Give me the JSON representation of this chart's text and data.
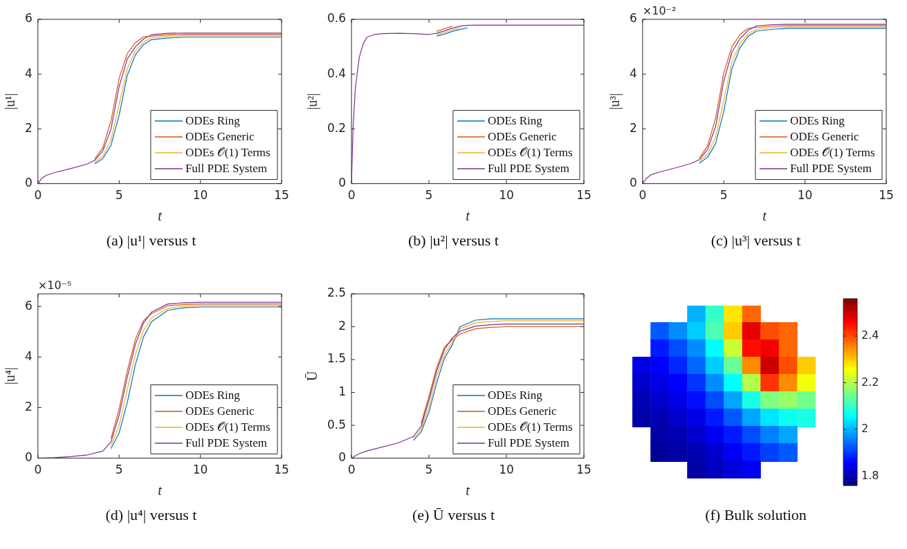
{
  "chart_data": [
    {
      "type": "line",
      "title": "(a) |u¹| versus t",
      "xlabel": "t",
      "ylabel": "|u¹|",
      "legend": "bottom right",
      "xlim": [
        0,
        15
      ],
      "xticks": [
        0,
        5,
        10,
        15
      ],
      "ylim": [
        0,
        6
      ],
      "yticks": [
        0,
        2,
        4,
        6
      ],
      "x": [
        0,
        0.25,
        0.5,
        1,
        2,
        3,
        3.5,
        4,
        4.5,
        5,
        5.5,
        6,
        6.5,
        7,
        8,
        9,
        10,
        12,
        15
      ],
      "series": [
        {
          "name": "ODEs Ring",
          "color": "#0072bd",
          "x": [
            3.5,
            4,
            4.5,
            5,
            5.5,
            6,
            6.5,
            7,
            8,
            9,
            10,
            12,
            15
          ],
          "values": [
            0.72,
            0.92,
            1.4,
            2.5,
            3.95,
            4.7,
            5.08,
            5.26,
            5.32,
            5.35,
            5.35,
            5.35,
            5.35
          ]
        },
        {
          "name": "ODEs Generic",
          "color": "#d95319",
          "x": [
            3.5,
            4,
            4.5,
            5,
            5.5,
            6,
            6.5,
            7,
            8,
            9,
            10,
            12,
            15
          ],
          "values": [
            0.9,
            1.32,
            2.3,
            3.85,
            4.75,
            5.15,
            5.36,
            5.39,
            5.44,
            5.45,
            5.45,
            5.45,
            5.45
          ]
        },
        {
          "name": "ODEs 𝒪(1) Terms",
          "color": "#edb120",
          "x": [
            3.5,
            4,
            4.5,
            5,
            5.5,
            6,
            6.5,
            7,
            8,
            9,
            10,
            12,
            15
          ],
          "values": [
            0.78,
            1.02,
            1.6,
            2.9,
            4.2,
            4.85,
            5.17,
            5.33,
            5.39,
            5.4,
            5.4,
            5.4,
            5.4
          ]
        },
        {
          "name": "Full PDE System",
          "color": "#7e2f8e",
          "values": [
            0,
            0.2,
            0.3,
            0.4,
            0.55,
            0.71,
            0.85,
            1.2,
            2.0,
            3.55,
            4.55,
            5.0,
            5.28,
            5.44,
            5.49,
            5.5,
            5.5,
            5.5,
            5.5
          ]
        }
      ]
    },
    {
      "type": "line",
      "title": "(b) |u²| versus t",
      "xlabel": "t",
      "ylabel": "|u²|",
      "legend": "bottom right",
      "xlim": [
        0,
        15
      ],
      "xticks": [
        0,
        5,
        10,
        15
      ],
      "ylim": [
        0,
        0.6
      ],
      "yticks": [
        0,
        0.2,
        0.4,
        0.6
      ],
      "x": [
        0,
        0.1,
        0.25,
        0.5,
        0.75,
        1,
        1.5,
        2,
        3,
        4,
        5,
        5.5,
        6,
        6.5,
        7,
        7.5,
        8,
        10,
        15
      ],
      "series": [
        {
          "name": "ODEs Ring",
          "color": "#0072bd",
          "x": [
            5.5,
            6,
            6.5,
            7,
            7.5
          ],
          "values": [
            0.539,
            0.546,
            0.556,
            0.563,
            0.569
          ]
        },
        {
          "name": "ODEs Generic",
          "color": "#d95319",
          "x": [
            5.5,
            6,
            6.5
          ],
          "values": [
            0.556,
            0.566,
            0.575
          ]
        },
        {
          "name": "ODEs 𝒪(1) Terms",
          "color": "#edb120",
          "x": [
            5.5,
            6,
            6.5,
            7
          ],
          "values": [
            0.544,
            0.552,
            0.562,
            0.569
          ]
        },
        {
          "name": "Full PDE System",
          "color": "#7e2f8e",
          "values": [
            0,
            0.2,
            0.35,
            0.46,
            0.51,
            0.535,
            0.545,
            0.548,
            0.549,
            0.548,
            0.545,
            0.549,
            0.558,
            0.568,
            0.575,
            0.578,
            0.579,
            0.579,
            0.579
          ]
        }
      ]
    },
    {
      "type": "line",
      "title": "(c) |u³| versus t",
      "xlabel": "t",
      "ylabel": "|u³|",
      "annotations": [
        "×10⁻²"
      ],
      "legend": "bottom right",
      "xlim": [
        0,
        15
      ],
      "xticks": [
        0,
        5,
        10,
        15
      ],
      "ylim": [
        0,
        6
      ],
      "yticks": [
        0,
        2,
        4,
        6
      ],
      "x": [
        0,
        0.25,
        0.5,
        1,
        2,
        3,
        3.5,
        4,
        4.5,
        5,
        5.5,
        6,
        6.5,
        7,
        8,
        9,
        10,
        12,
        15
      ],
      "series": [
        {
          "name": "ODEs Ring",
          "color": "#0072bd",
          "x": [
            3.5,
            4,
            4.5,
            5,
            5.5,
            6,
            6.5,
            7,
            8,
            9,
            10,
            12,
            15
          ],
          "values": [
            0.75,
            0.96,
            1.47,
            2.65,
            4.2,
            4.97,
            5.38,
            5.57,
            5.64,
            5.67,
            5.67,
            5.67,
            5.67
          ]
        },
        {
          "name": "ODEs Generic",
          "color": "#d95319",
          "x": [
            3.5,
            4,
            4.5,
            5,
            5.5,
            6,
            6.5,
            7,
            8,
            9,
            10,
            12,
            15
          ],
          "values": [
            0.94,
            1.38,
            2.4,
            4.05,
            5.0,
            5.45,
            5.67,
            5.71,
            5.76,
            5.77,
            5.77,
            5.77,
            5.77
          ]
        },
        {
          "name": "ODEs 𝒪(1) Terms",
          "color": "#edb120",
          "x": [
            3.5,
            4,
            4.5,
            5,
            5.5,
            6,
            6.5,
            7,
            8,
            9,
            10,
            12,
            15
          ],
          "values": [
            0.81,
            1.07,
            1.7,
            3.05,
            4.45,
            5.12,
            5.47,
            5.64,
            5.71,
            5.72,
            5.72,
            5.72,
            5.72
          ]
        },
        {
          "name": "Full PDE System",
          "color": "#7e2f8e",
          "values": [
            0,
            0.2,
            0.32,
            0.42,
            0.57,
            0.74,
            0.88,
            1.25,
            2.1,
            3.75,
            4.8,
            5.3,
            5.6,
            5.76,
            5.81,
            5.82,
            5.82,
            5.82,
            5.82
          ]
        }
      ]
    },
    {
      "type": "line",
      "title": "(d) |u⁴| versus t",
      "xlabel": "t",
      "ylabel": "|u⁴|",
      "annotations": [
        "×10⁻⁵"
      ],
      "legend": "bottom right",
      "xlim": [
        0,
        15
      ],
      "xticks": [
        0,
        5,
        10,
        15
      ],
      "ylim": [
        0,
        6.5
      ],
      "yticks": [
        0,
        2,
        4,
        6
      ],
      "x": [
        0,
        1,
        2,
        3,
        4,
        4.5,
        5,
        5.5,
        6,
        6.5,
        7,
        8,
        9,
        10,
        12,
        15
      ],
      "series": [
        {
          "name": "ODEs Ring",
          "color": "#0072bd",
          "x": [
            4.5,
            5,
            5.5,
            6,
            6.5,
            7,
            8,
            9,
            10,
            12,
            15
          ],
          "values": [
            0.38,
            1.0,
            2.2,
            3.7,
            4.8,
            5.4,
            5.85,
            5.95,
            5.98,
            5.98,
            5.98
          ]
        },
        {
          "name": "ODEs Generic",
          "color": "#d95319",
          "x": [
            4.5,
            5,
            5.5,
            6,
            6.5,
            7,
            8,
            9,
            10,
            12,
            15
          ],
          "values": [
            0.78,
            1.95,
            3.45,
            4.7,
            5.45,
            5.72,
            6.03,
            6.08,
            6.1,
            6.1,
            6.1
          ]
        },
        {
          "name": "ODEs 𝒪(1) Terms",
          "color": "#edb120",
          "x": [
            4.5,
            5,
            5.5,
            6,
            6.5,
            7,
            8,
            9,
            10,
            12,
            15
          ],
          "values": [
            0.5,
            1.3,
            2.7,
            4.1,
            5.05,
            5.55,
            5.93,
            6.01,
            6.04,
            6.04,
            6.04
          ]
        },
        {
          "name": "Full PDE System",
          "color": "#7e2f8e",
          "values": [
            0,
            0.02,
            0.06,
            0.12,
            0.28,
            0.65,
            1.7,
            3.2,
            4.5,
            5.35,
            5.78,
            6.1,
            6.15,
            6.17,
            6.17,
            6.17
          ]
        }
      ]
    },
    {
      "type": "line",
      "title": "(e) Ū versus t",
      "xlabel": "t",
      "ylabel": "Ū",
      "legend": "bottom right",
      "xlim": [
        0,
        15
      ],
      "xticks": [
        0,
        5,
        10,
        15
      ],
      "ylim": [
        0,
        2.5
      ],
      "yticks": [
        0,
        0.5,
        1,
        1.5,
        2,
        2.5
      ],
      "x": [
        0,
        0.5,
        1,
        2,
        3,
        4,
        4.5,
        5,
        5.5,
        6,
        6.5,
        7,
        8,
        9,
        10,
        15
      ],
      "series": [
        {
          "name": "ODEs Ring",
          "color": "#0072bd",
          "x": [
            4,
            4.5,
            5,
            5.5,
            6,
            6.5,
            7,
            8,
            9,
            10,
            15
          ],
          "values": [
            0.27,
            0.4,
            0.7,
            1.15,
            1.52,
            1.72,
            2.0,
            2.1,
            2.12,
            2.12,
            2.12
          ]
        },
        {
          "name": "ODEs Generic",
          "color": "#d95319",
          "x": [
            4.5,
            5,
            5.5,
            6,
            6.5,
            7,
            8,
            9,
            10,
            15
          ],
          "values": [
            0.53,
            0.94,
            1.38,
            1.69,
            1.8,
            1.89,
            1.97,
            1.99,
            2.0,
            2.0
          ]
        },
        {
          "name": "ODEs 𝒪(1) Terms",
          "color": "#edb120",
          "x": [
            4,
            4.5,
            5,
            5.5,
            6,
            6.5,
            7,
            8,
            9,
            10,
            15
          ],
          "values": [
            0.3,
            0.44,
            0.78,
            1.25,
            1.58,
            1.76,
            1.97,
            2.06,
            2.08,
            2.09,
            2.09
          ]
        },
        {
          "name": "Full PDE System",
          "color": "#7e2f8e",
          "values": [
            0,
            0.07,
            0.11,
            0.17,
            0.23,
            0.33,
            0.49,
            0.88,
            1.33,
            1.65,
            1.83,
            1.93,
            2.01,
            2.03,
            2.04,
            2.04
          ]
        }
      ]
    },
    {
      "type": "heatmap",
      "title": "(f) Bulk solution",
      "tick_labels": false,
      "clim": [
        1.76,
        2.56
      ],
      "cticks": [
        1.8,
        2,
        2.2,
        2.4
      ],
      "categories": [
        null,
        null,
        null,
        null,
        null,
        null,
        null,
        null,
        null,
        null
      ],
      "y_categories": [
        null,
        null,
        null,
        null,
        null,
        null,
        null,
        null,
        null,
        null
      ],
      "cells": [
        [
          null,
          null,
          null,
          2.0,
          2.1,
          2.28,
          2.38,
          null,
          null,
          null
        ],
        [
          null,
          1.93,
          1.97,
          2.02,
          2.12,
          2.3,
          2.48,
          2.4,
          2.38,
          null
        ],
        [
          null,
          1.88,
          1.92,
          1.97,
          2.06,
          2.22,
          2.45,
          2.47,
          2.38,
          null
        ],
        [
          1.84,
          1.86,
          1.89,
          1.94,
          2.02,
          2.14,
          2.35,
          2.5,
          2.4,
          2.3
        ],
        [
          1.82,
          1.84,
          1.86,
          1.9,
          1.97,
          2.06,
          2.2,
          2.42,
          2.35,
          2.25
        ],
        [
          1.8,
          1.82,
          1.84,
          1.87,
          1.92,
          1.99,
          2.08,
          2.16,
          2.18,
          2.15
        ],
        [
          1.79,
          1.8,
          1.82,
          1.84,
          1.88,
          1.93,
          1.99,
          2.04,
          2.07,
          2.08
        ],
        [
          null,
          1.79,
          1.8,
          1.82,
          1.85,
          1.88,
          1.92,
          1.96,
          1.99,
          null
        ],
        [
          null,
          1.78,
          1.79,
          1.8,
          1.82,
          1.85,
          1.88,
          1.91,
          1.93,
          null
        ],
        [
          null,
          null,
          null,
          1.79,
          1.81,
          1.83,
          1.85,
          null,
          null,
          null
        ]
      ]
    }
  ]
}
